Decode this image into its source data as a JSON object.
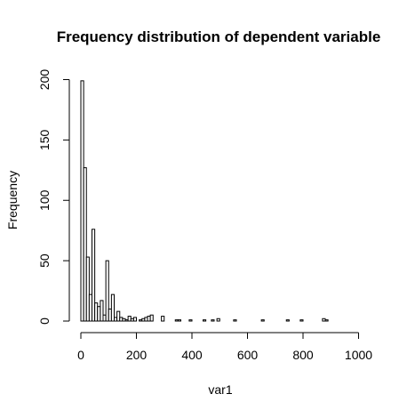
{
  "chart_data": {
    "type": "bar",
    "title": "Frequency distribution of dependent variable",
    "xlabel": "var1",
    "ylabel": "Frequency",
    "xlim": [
      0,
      1040
    ],
    "ylim": [
      0,
      200
    ],
    "x_ticks": [
      0,
      200,
      400,
      600,
      800,
      1000
    ],
    "y_ticks": [
      0,
      50,
      100,
      150,
      200
    ],
    "grid": false,
    "legend": "none",
    "bin_width": 10,
    "bins": [
      {
        "x0": 0,
        "x1": 10,
        "count": 199
      },
      {
        "x0": 10,
        "x1": 20,
        "count": 127
      },
      {
        "x0": 20,
        "x1": 30,
        "count": 53
      },
      {
        "x0": 30,
        "x1": 40,
        "count": 22
      },
      {
        "x0": 40,
        "x1": 50,
        "count": 76
      },
      {
        "x0": 50,
        "x1": 60,
        "count": 15
      },
      {
        "x0": 60,
        "x1": 70,
        "count": 12
      },
      {
        "x0": 70,
        "x1": 80,
        "count": 17
      },
      {
        "x0": 80,
        "x1": 90,
        "count": 5
      },
      {
        "x0": 90,
        "x1": 100,
        "count": 50
      },
      {
        "x0": 100,
        "x1": 110,
        "count": 10
      },
      {
        "x0": 110,
        "x1": 120,
        "count": 22
      },
      {
        "x0": 120,
        "x1": 130,
        "count": 3
      },
      {
        "x0": 130,
        "x1": 140,
        "count": 8
      },
      {
        "x0": 140,
        "x1": 150,
        "count": 3
      },
      {
        "x0": 150,
        "x1": 160,
        "count": 2
      },
      {
        "x0": 160,
        "x1": 170,
        "count": 1
      },
      {
        "x0": 170,
        "x1": 180,
        "count": 4
      },
      {
        "x0": 180,
        "x1": 190,
        "count": 2
      },
      {
        "x0": 190,
        "x1": 200,
        "count": 3
      },
      {
        "x0": 210,
        "x1": 220,
        "count": 1
      },
      {
        "x0": 220,
        "x1": 230,
        "count": 2
      },
      {
        "x0": 230,
        "x1": 240,
        "count": 3
      },
      {
        "x0": 240,
        "x1": 250,
        "count": 4
      },
      {
        "x0": 250,
        "x1": 260,
        "count": 5
      },
      {
        "x0": 290,
        "x1": 300,
        "count": 4
      },
      {
        "x0": 340,
        "x1": 350,
        "count": 1
      },
      {
        "x0": 350,
        "x1": 360,
        "count": 1
      },
      {
        "x0": 390,
        "x1": 400,
        "count": 1
      },
      {
        "x0": 440,
        "x1": 450,
        "count": 1
      },
      {
        "x0": 470,
        "x1": 480,
        "count": 1
      },
      {
        "x0": 490,
        "x1": 500,
        "count": 2
      },
      {
        "x0": 550,
        "x1": 560,
        "count": 1
      },
      {
        "x0": 650,
        "x1": 660,
        "count": 1
      },
      {
        "x0": 740,
        "x1": 750,
        "count": 1
      },
      {
        "x0": 790,
        "x1": 800,
        "count": 1
      },
      {
        "x0": 870,
        "x1": 880,
        "count": 2
      },
      {
        "x0": 880,
        "x1": 890,
        "count": 1
      }
    ],
    "colors": {
      "bar_fill": "#ffffff",
      "bar_stroke": "#000000",
      "axis": "#000000",
      "background": "#ffffff"
    }
  }
}
